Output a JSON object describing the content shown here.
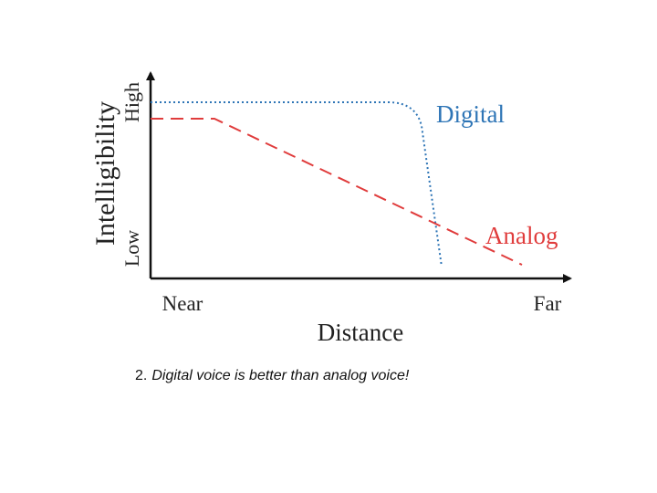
{
  "y_axis": {
    "title": "Intelligibility",
    "high": "High",
    "low": "Low"
  },
  "x_axis": {
    "title": "Distance",
    "near": "Near",
    "far": "Far"
  },
  "curves": {
    "digital": "Digital",
    "analog": "Analog"
  },
  "caption": {
    "number": "2.",
    "text": "Digital voice is better than analog voice!"
  }
}
